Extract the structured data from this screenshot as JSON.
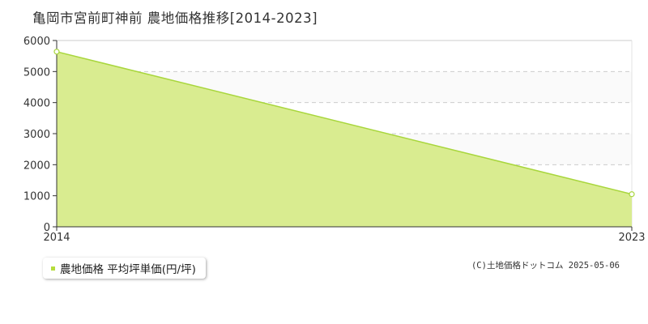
{
  "title": "亀岡市宮前町神前 農地価格推移[2014-2023]",
  "colors": {
    "area_fill": "#d9ec90",
    "line": "#a8d63c",
    "marker_fill": "#ffffff",
    "legend_marker": "#b5dc3c",
    "grid": "#cccccc",
    "band_fill": "#fafafa",
    "axis": "#333333"
  },
  "chart_data": {
    "type": "area",
    "title": "亀岡市宮前町神前 農地価格推移[2014-2023]",
    "x": [
      2014,
      2023
    ],
    "xticks": [
      "2014",
      "2023"
    ],
    "series": [
      {
        "name": "農地価格 平均坪単価(円/坪)",
        "values": [
          5640,
          1050
        ]
      }
    ],
    "ylim": [
      0,
      6000
    ],
    "yticks": [
      "0",
      "1000",
      "2000",
      "3000",
      "4000",
      "5000",
      "6000"
    ],
    "xlabel": "",
    "ylabel": "",
    "grid": true,
    "legend": "bottom-left"
  },
  "legend": {
    "label": "農地価格 平均坪単価(円/坪)"
  },
  "copyright": "(C)土地価格ドットコム 2025-05-06"
}
